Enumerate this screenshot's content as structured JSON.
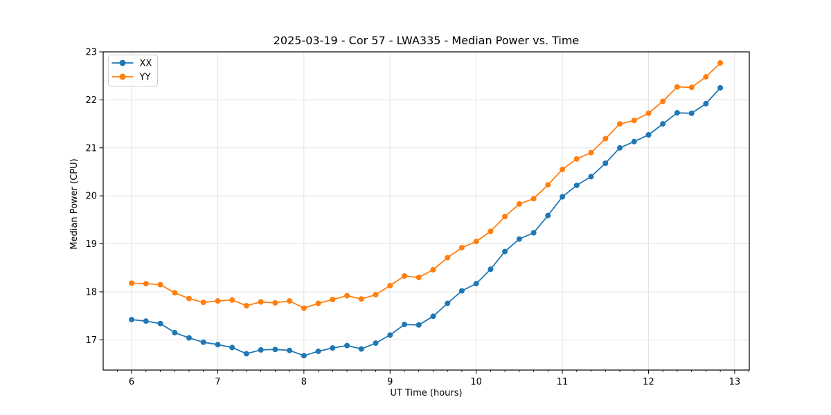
{
  "chart_data": {
    "type": "line",
    "title": "2025-03-19 - Cor 57 - LWA335 - Median Power vs. Time",
    "xlabel": "UT Time (hours)",
    "ylabel": "Median Power (CPU)",
    "x": [
      6.0,
      6.1667,
      6.3333,
      6.5,
      6.6667,
      6.8333,
      7.0,
      7.1667,
      7.3333,
      7.5,
      7.6667,
      7.8333,
      8.0,
      8.1667,
      8.3333,
      8.5,
      8.6667,
      8.8333,
      9.0,
      9.1667,
      9.3333,
      9.5,
      9.6667,
      9.8333,
      10.0,
      10.1667,
      10.3333,
      10.5,
      10.6667,
      10.8333,
      11.0,
      11.1667,
      11.3333,
      11.5,
      11.6667,
      11.8333,
      12.0,
      12.1667,
      12.3333,
      12.5,
      12.6667,
      12.8333
    ],
    "series": [
      {
        "name": "XX",
        "color": "#1f77b4",
        "values": [
          17.42,
          17.39,
          17.34,
          17.15,
          17.04,
          16.95,
          16.9,
          16.84,
          16.71,
          16.79,
          16.8,
          16.78,
          16.67,
          16.76,
          16.83,
          16.88,
          16.81,
          16.93,
          17.1,
          17.32,
          17.31,
          17.49,
          17.76,
          18.02,
          18.17,
          18.47,
          18.84,
          19.1,
          19.23,
          19.59,
          19.98,
          20.22,
          20.4,
          20.68,
          21.0,
          21.13,
          21.27,
          21.5,
          21.73,
          21.72,
          21.92,
          22.25
        ]
      },
      {
        "name": "YY",
        "color": "#ff7f0e",
        "values": [
          18.18,
          18.17,
          18.15,
          17.98,
          17.86,
          17.78,
          17.81,
          17.83,
          17.71,
          17.79,
          17.77,
          17.81,
          17.66,
          17.76,
          17.84,
          17.92,
          17.85,
          17.94,
          18.13,
          18.33,
          18.3,
          18.46,
          18.71,
          18.92,
          19.05,
          19.26,
          19.57,
          19.83,
          19.94,
          20.23,
          20.55,
          20.77,
          20.9,
          21.19,
          21.5,
          21.57,
          21.72,
          21.97,
          22.27,
          22.26,
          22.48,
          22.77
        ]
      }
    ],
    "xlim": [
      5.67,
      13.17
    ],
    "ylim": [
      16.37,
      23.0
    ],
    "xticks": [
      "6",
      "7",
      "8",
      "9",
      "10",
      "11",
      "12",
      "13"
    ],
    "xtick_values": [
      6,
      7,
      8,
      9,
      10,
      11,
      12,
      13
    ],
    "x_minor_step": 0.166667,
    "yticks": [
      "17",
      "18",
      "19",
      "20",
      "21",
      "22",
      "23"
    ],
    "ytick_values": [
      17,
      18,
      19,
      20,
      21,
      22,
      23
    ],
    "grid": true,
    "grid_color": "#e0e0e0",
    "spine_color": "#000000",
    "background_color": "#ffffff",
    "legend": {
      "position": "upper left",
      "entries": [
        "XX",
        "YY"
      ],
      "border_color": "#cccccc",
      "fill_color": "#ffffff"
    },
    "marker": "circle",
    "marker_size": 4,
    "line_width": 1.8
  }
}
